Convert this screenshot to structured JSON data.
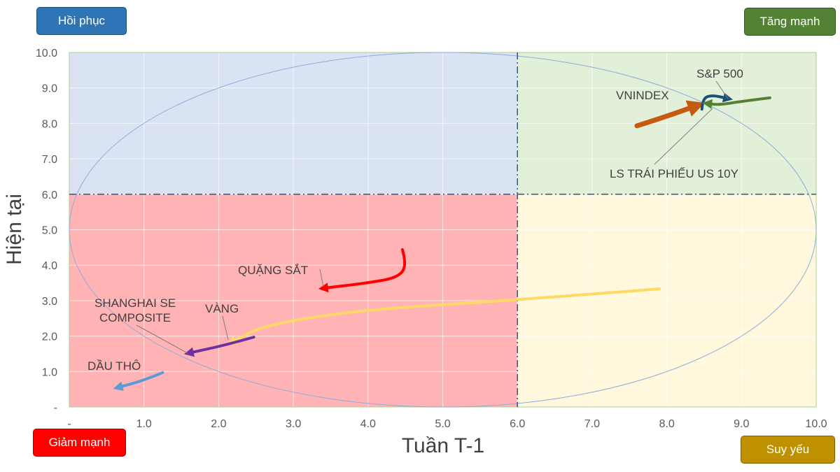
{
  "quadrant_buttons": {
    "top_left": {
      "label": "Hồi phục",
      "color": "#2e75b6"
    },
    "top_right": {
      "label": "Tăng mạnh",
      "color": "#548235"
    },
    "bottom_left": {
      "label": "Giảm mạnh",
      "color": "#ff0000"
    },
    "bottom_right": {
      "label": "Suy yếu",
      "color": "#bf9000"
    }
  },
  "chart_data": {
    "type": "line",
    "xlabel": "Tuần T-1",
    "ylabel": "Hiện tại",
    "xlim": [
      0,
      10
    ],
    "ylim": [
      0,
      10
    ],
    "xticks": [
      "-",
      "1.0",
      "2.0",
      "3.0",
      "4.0",
      "5.0",
      "6.0",
      "7.0",
      "8.0",
      "9.0",
      "10.0"
    ],
    "yticks": [
      "-",
      "1.0",
      "2.0",
      "3.0",
      "4.0",
      "5.0",
      "6.0",
      "7.0",
      "8.0",
      "9.0",
      "10.0"
    ],
    "grid": true,
    "quadrant_threshold": {
      "x": 6,
      "y": 6
    },
    "quadrant_colors": {
      "top_left": "#dae3f3",
      "top_right": "#e2efd9",
      "bottom_left": "#ffb3b5",
      "bottom_right": "#fff8dd"
    },
    "ellipse": {
      "cx": 5,
      "cy": 5,
      "rx": 5,
      "ry": 5
    },
    "series": [
      {
        "name": "VNINDEX",
        "color": "#c55a11",
        "points": [
          [
            7.6,
            7.93
          ],
          [
            8.0,
            8.2
          ],
          [
            8.4,
            8.5
          ]
        ]
      },
      {
        "name": "S&P 500",
        "color": "#1f4e79",
        "points": [
          [
            8.47,
            8.4
          ],
          [
            8.48,
            8.7
          ],
          [
            8.6,
            8.8
          ],
          [
            8.82,
            8.7
          ]
        ]
      },
      {
        "name": "LS TRÁI PHIẾU US 10Y",
        "color": "#548235",
        "points": [
          [
            9.38,
            8.72
          ],
          [
            9.0,
            8.62
          ],
          [
            8.7,
            8.52
          ],
          [
            8.54,
            8.56
          ]
        ]
      },
      {
        "name": "QUẶNG SẮT",
        "color": "#ff0000",
        "points": [
          [
            4.46,
            4.44
          ],
          [
            4.52,
            4.0
          ],
          [
            4.4,
            3.65
          ],
          [
            4.0,
            3.5
          ],
          [
            3.4,
            3.35
          ]
        ]
      },
      {
        "name": "VÀNG",
        "color": "#ffd966",
        "points": [
          [
            7.9,
            3.33
          ],
          [
            6.0,
            3.02
          ],
          [
            4.0,
            2.75
          ],
          [
            3.0,
            2.45
          ],
          [
            2.5,
            2.2
          ],
          [
            2.17,
            1.82
          ]
        ]
      },
      {
        "name": "SHANGHAI SE COMPOSITE",
        "color": "#7030a0",
        "points": [
          [
            2.47,
            1.97
          ],
          [
            2.1,
            1.75
          ],
          [
            1.6,
            1.52
          ]
        ]
      },
      {
        "name": "DẦU THÔ",
        "color": "#5b9bd5",
        "points": [
          [
            1.25,
            0.97
          ],
          [
            1.0,
            0.75
          ],
          [
            0.65,
            0.55
          ]
        ]
      }
    ]
  }
}
